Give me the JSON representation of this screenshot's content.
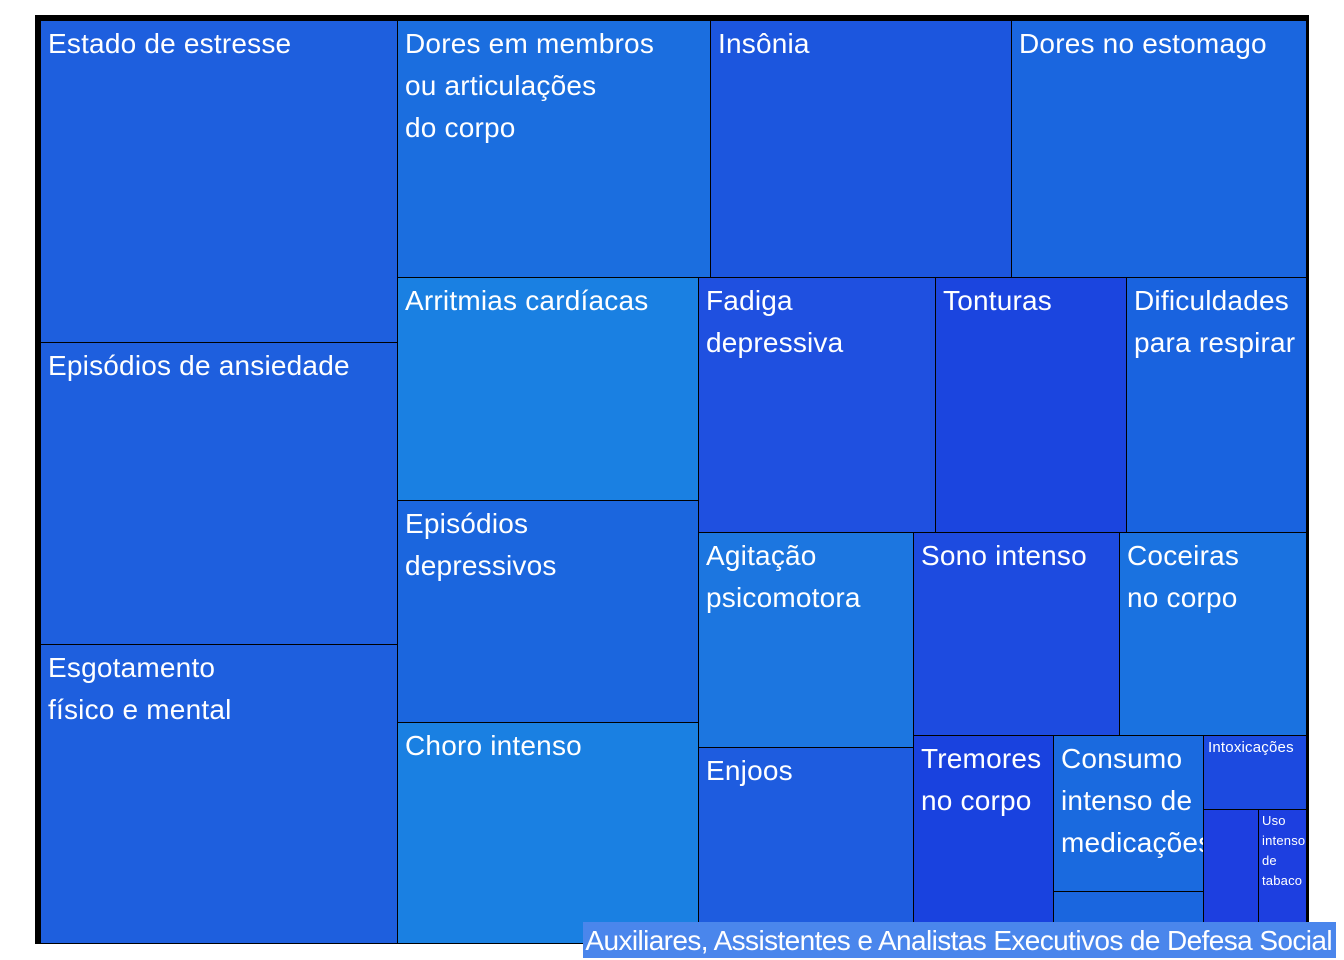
{
  "chart_data": {
    "type": "treemap",
    "title": "Auxiliares, Assistentes e Analistas Executivos de Defesa Social",
    "colors": [
      "#1e5fde",
      "#1b6edf",
      "#1c56de",
      "#1a66df",
      "#1a80e2",
      "#1f50e0",
      "#1b45df",
      "#1963df",
      "#1c76e0",
      "#1d4be0",
      "#1a72e0",
      "#1e5cdf",
      "#1942df",
      "#1a6adf",
      "#1c4ae0",
      "#1d3fe0"
    ],
    "items": [
      {
        "label": "Estado de estresse",
        "color": "#1e5fde"
      },
      {
        "label": "Episódios de ansiedade",
        "color": "#1e5fde"
      },
      {
        "label": "Esgotamento\nfísico e mental",
        "color": "#1e5fde"
      },
      {
        "label": "Dores em membros\nou articulações\ndo corpo",
        "color": "#1b6edf"
      },
      {
        "label": "Insônia",
        "color": "#1c56de"
      },
      {
        "label": "Dores no estomago",
        "color": "#1a66df"
      },
      {
        "label": "Arritmias cardíacas",
        "color": "#1a80e2"
      },
      {
        "label": "Episódios\ndepressivos",
        "color": "#1b66de"
      },
      {
        "label": "Choro intenso",
        "color": "#1a80e2"
      },
      {
        "label": "Fadiga\ndepressiva",
        "color": "#1f50e0"
      },
      {
        "label": "Tonturas",
        "color": "#1b45df"
      },
      {
        "label": "Dificuldades\npara respirar",
        "color": "#1963df"
      },
      {
        "label": "Agitação\npsicomotora",
        "color": "#1c76e0"
      },
      {
        "label": "Sono intenso",
        "color": "#1d4be0"
      },
      {
        "label": "Coceiras\nno corpo",
        "color": "#1a72e0"
      },
      {
        "label": "Enjoos",
        "color": "#1e5cdf"
      },
      {
        "label": "Tremores\nno corpo",
        "color": "#1942df"
      },
      {
        "label": "Consumo\nintenso de\nmedicações",
        "color": "#1a6adf"
      },
      {
        "label": "",
        "color": "#1a66df"
      },
      {
        "label": "Intoxicações",
        "color": "#1c4ae0"
      },
      {
        "label": "",
        "color": "#1d3fe0"
      },
      {
        "label": "Uso\nintenso\nde\ntabaco",
        "color": "#1d3fe0"
      }
    ]
  }
}
